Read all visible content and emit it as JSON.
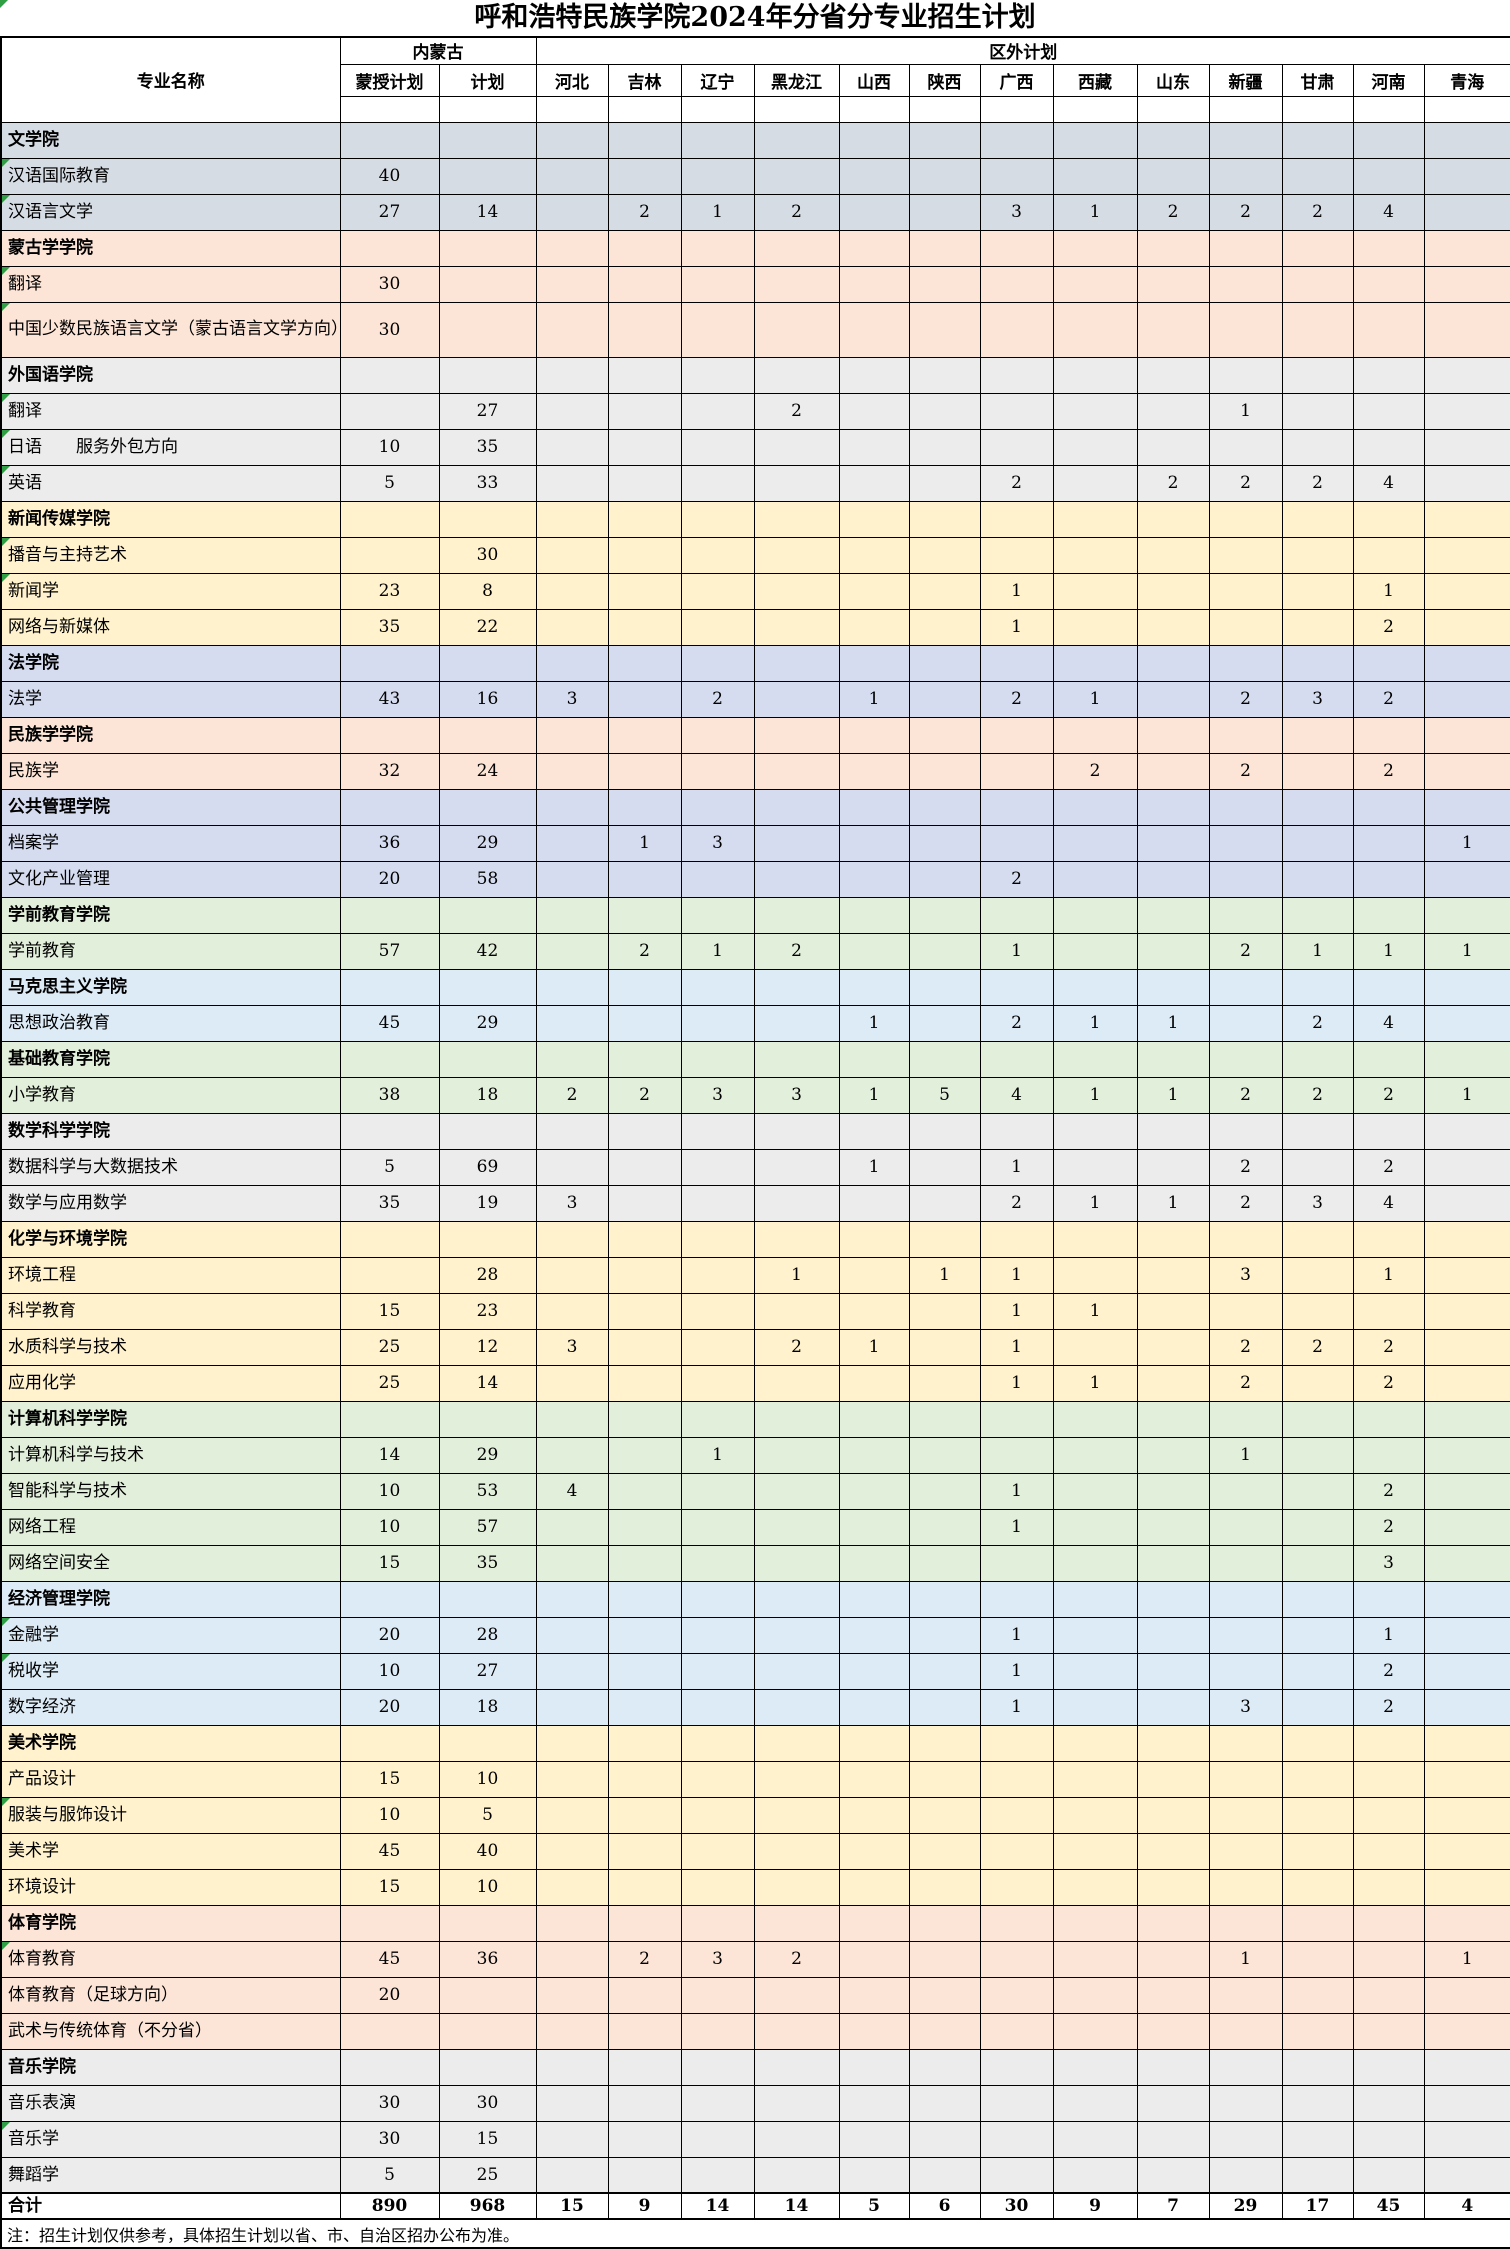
{
  "title": "呼和浩特民族学院2024年分省分专业招生计划",
  "note": "注：招生计划仅供参考，具体招生计划以省、市、自治区招办公布为准。",
  "columns": {
    "major": "专业名称",
    "inner_mongolia": "内蒙古",
    "outside": "区外计划",
    "mengshou": "蒙授计划",
    "jihua": "计划",
    "provinces": [
      "河北",
      "吉林",
      "辽宁",
      "黑龙江",
      "山西",
      "陕西",
      "广西",
      "西藏",
      "山东",
      "新疆",
      "甘肃",
      "河南",
      "青海"
    ]
  },
  "colors": {
    "marker_green": "#2f9e44",
    "bluegrey": "#D6DCE4",
    "peach": "#FCE4D6",
    "grey": "#ECECEC",
    "yellow": "#FFF2CC",
    "lavender": "#D5DCF0",
    "green": "#E2EFDA",
    "lightblue": "#DDEBF7",
    "white": "#FFFFFF"
  },
  "totals": {
    "mengshou": "890",
    "jihua": "968"
  },
  "rows": [
    {
      "t": "college",
      "n": "文学院",
      "c": "bluegrey"
    },
    {
      "t": "major",
      "n": "汉语国际教育",
      "c": "bluegrey",
      "m": "40",
      "p": "",
      "tri": true
    },
    {
      "t": "major",
      "n": "汉语言文学",
      "c": "bluegrey",
      "m": "27",
      "p": "14",
      "v": [
        "",
        "2",
        "1",
        "2",
        "",
        "",
        "3",
        "1",
        "2",
        "2",
        "2",
        "4",
        ""
      ],
      "tri": true
    },
    {
      "t": "college",
      "n": "蒙古学学院",
      "c": "peach"
    },
    {
      "t": "major",
      "n": "翻译",
      "c": "peach",
      "m": "30",
      "p": "",
      "tri": true
    },
    {
      "t": "major",
      "n": "中国少数民族语言文学（蒙古语言文学方向）",
      "c": "peach",
      "m": "30",
      "p": "",
      "tall": true,
      "tri": true
    },
    {
      "t": "college",
      "n": "外国语学院",
      "c": "grey"
    },
    {
      "t": "major",
      "n": "翻译",
      "c": "grey",
      "m": "",
      "p": "27",
      "v": [
        "",
        "",
        "",
        "2",
        "",
        "",
        "",
        "",
        "",
        "1",
        "",
        "",
        ""
      ],
      "tri": true
    },
    {
      "t": "major",
      "n": "日语　　服务外包方向",
      "c": "grey",
      "m": "10",
      "p": "35",
      "tri": true
    },
    {
      "t": "major",
      "n": "英语",
      "c": "grey",
      "m": "5",
      "p": "33",
      "v": [
        "",
        "",
        "",
        "",
        "",
        "",
        "2",
        "",
        "2",
        "2",
        "2",
        "4",
        ""
      ],
      "tri": true
    },
    {
      "t": "college",
      "n": "新闻传媒学院",
      "c": "yellow"
    },
    {
      "t": "major",
      "n": "播音与主持艺术",
      "c": "yellow",
      "m": "",
      "p": "30",
      "tri": true
    },
    {
      "t": "major",
      "n": "新闻学",
      "c": "yellow",
      "m": "23",
      "p": "8",
      "v": [
        "",
        "",
        "",
        "",
        "",
        "",
        "1",
        "",
        "",
        "",
        "",
        "1",
        ""
      ],
      "tri": true
    },
    {
      "t": "major",
      "n": "网络与新媒体",
      "c": "yellow",
      "m": "35",
      "p": "22",
      "v": [
        "",
        "",
        "",
        "",
        "",
        "",
        "1",
        "",
        "",
        "",
        "",
        "2",
        ""
      ]
    },
    {
      "t": "college",
      "n": "法学院",
      "c": "lavender"
    },
    {
      "t": "major",
      "n": "法学",
      "c": "lavender",
      "m": "43",
      "p": "16",
      "v": [
        "3",
        "",
        "2",
        "",
        "1",
        "",
        "2",
        "1",
        "",
        "2",
        "3",
        "2",
        ""
      ]
    },
    {
      "t": "college",
      "n": "民族学学院",
      "c": "peach"
    },
    {
      "t": "major",
      "n": "民族学",
      "c": "peach",
      "m": "32",
      "p": "24",
      "v": [
        "",
        "",
        "",
        "",
        "",
        "",
        "",
        "2",
        "",
        "2",
        "",
        "2",
        ""
      ]
    },
    {
      "t": "college",
      "n": "公共管理学院",
      "c": "lavender"
    },
    {
      "t": "major",
      "n": "档案学",
      "c": "lavender",
      "m": "36",
      "p": "29",
      "v": [
        "",
        "1",
        "3",
        "",
        "",
        "",
        "",
        "",
        "",
        "",
        "",
        "",
        "1"
      ]
    },
    {
      "t": "major",
      "n": "文化产业管理",
      "c": "lavender",
      "m": "20",
      "p": "58",
      "v": [
        "",
        "",
        "",
        "",
        "",
        "",
        "2",
        "",
        "",
        "",
        "",
        "",
        ""
      ]
    },
    {
      "t": "college",
      "n": "学前教育学院",
      "c": "green"
    },
    {
      "t": "major",
      "n": "学前教育",
      "c": "green",
      "m": "57",
      "p": "42",
      "v": [
        "",
        "2",
        "1",
        "2",
        "",
        "",
        "1",
        "",
        "",
        "2",
        "1",
        "1",
        "1"
      ]
    },
    {
      "t": "college",
      "n": "马克思主义学院",
      "c": "lightblue"
    },
    {
      "t": "major",
      "n": "思想政治教育",
      "c": "lightblue",
      "m": "45",
      "p": "29",
      "v": [
        "",
        "",
        "",
        "",
        "1",
        "",
        "2",
        "1",
        "1",
        "",
        "2",
        "4",
        ""
      ]
    },
    {
      "t": "college",
      "n": "基础教育学院",
      "c": "green"
    },
    {
      "t": "major",
      "n": "小学教育",
      "c": "green",
      "m": "38",
      "p": "18",
      "v": [
        "2",
        "2",
        "3",
        "3",
        "1",
        "5",
        "4",
        "1",
        "1",
        "2",
        "2",
        "2",
        "1"
      ]
    },
    {
      "t": "college",
      "n": "数学科学学院",
      "c": "grey"
    },
    {
      "t": "major",
      "n": "数据科学与大数据技术",
      "c": "grey",
      "m": "5",
      "p": "69",
      "v": [
        "",
        "",
        "",
        "",
        "1",
        "",
        "1",
        "",
        "",
        "2",
        "",
        "2",
        ""
      ]
    },
    {
      "t": "major",
      "n": "数学与应用数学",
      "c": "grey",
      "m": "35",
      "p": "19",
      "v": [
        "3",
        "",
        "",
        "",
        "",
        "",
        "2",
        "1",
        "1",
        "2",
        "3",
        "4",
        ""
      ]
    },
    {
      "t": "college",
      "n": "化学与环境学院",
      "c": "yellow"
    },
    {
      "t": "major",
      "n": "环境工程",
      "c": "yellow",
      "m": "",
      "p": "28",
      "v": [
        "",
        "",
        "",
        "1",
        "",
        "1",
        "1",
        "",
        "",
        "3",
        "",
        "1",
        ""
      ]
    },
    {
      "t": "major",
      "n": "科学教育",
      "c": "yellow",
      "m": "15",
      "p": "23",
      "v": [
        "",
        "",
        "",
        "",
        "",
        "",
        "1",
        "1",
        "",
        "",
        "",
        "",
        ""
      ]
    },
    {
      "t": "major",
      "n": "水质科学与技术",
      "c": "yellow",
      "m": "25",
      "p": "12",
      "v": [
        "3",
        "",
        "",
        "2",
        "1",
        "",
        "1",
        "",
        "",
        "2",
        "2",
        "2",
        ""
      ]
    },
    {
      "t": "major",
      "n": "应用化学",
      "c": "yellow",
      "m": "25",
      "p": "14",
      "v": [
        "",
        "",
        "",
        "",
        "",
        "",
        "1",
        "1",
        "",
        "2",
        "",
        "2",
        ""
      ]
    },
    {
      "t": "college",
      "n": "计算机科学学院",
      "c": "green"
    },
    {
      "t": "major",
      "n": "计算机科学与技术",
      "c": "green",
      "m": "14",
      "p": "29",
      "v": [
        "",
        "",
        "1",
        "",
        "",
        "",
        "",
        "",
        "",
        "1",
        "",
        "",
        ""
      ]
    },
    {
      "t": "major",
      "n": "智能科学与技术",
      "c": "green",
      "m": "10",
      "p": "53",
      "v": [
        "4",
        "",
        "",
        "",
        "",
        "",
        "1",
        "",
        "",
        "",
        "",
        "2",
        ""
      ]
    },
    {
      "t": "major",
      "n": "网络工程",
      "c": "green",
      "m": "10",
      "p": "57",
      "v": [
        "",
        "",
        "",
        "",
        "",
        "",
        "1",
        "",
        "",
        "",
        "",
        "2",
        ""
      ]
    },
    {
      "t": "major",
      "n": "网络空间安全",
      "c": "green",
      "m": "15",
      "p": "35",
      "v": [
        "",
        "",
        "",
        "",
        "",
        "",
        "",
        "",
        "",
        "",
        "",
        "3",
        ""
      ]
    },
    {
      "t": "college",
      "n": "经济管理学院",
      "c": "lightblue"
    },
    {
      "t": "major",
      "n": "金融学",
      "c": "lightblue",
      "m": "20",
      "p": "28",
      "v": [
        "",
        "",
        "",
        "",
        "",
        "",
        "1",
        "",
        "",
        "",
        "",
        "1",
        ""
      ],
      "tri": true
    },
    {
      "t": "major",
      "n": "税收学",
      "c": "lightblue",
      "m": "10",
      "p": "27",
      "v": [
        "",
        "",
        "",
        "",
        "",
        "",
        "1",
        "",
        "",
        "",
        "",
        "2",
        ""
      ],
      "tri": true
    },
    {
      "t": "major",
      "n": "数字经济",
      "c": "lightblue",
      "m": "20",
      "p": "18",
      "v": [
        "",
        "",
        "",
        "",
        "",
        "",
        "1",
        "",
        "",
        "3",
        "",
        "2",
        ""
      ]
    },
    {
      "t": "college",
      "n": "美术学院",
      "c": "yellow"
    },
    {
      "t": "major",
      "n": "产品设计",
      "c": "yellow",
      "m": "15",
      "p": "10"
    },
    {
      "t": "major",
      "n": "服装与服饰设计",
      "c": "yellow",
      "m": "10",
      "p": "5",
      "tri": true
    },
    {
      "t": "major",
      "n": "美术学",
      "c": "yellow",
      "m": "45",
      "p": "40"
    },
    {
      "t": "major",
      "n": "环境设计",
      "c": "yellow",
      "m": "15",
      "p": "10"
    },
    {
      "t": "college",
      "n": "体育学院",
      "c": "peach"
    },
    {
      "t": "major",
      "n": "体育教育",
      "c": "peach",
      "m": "45",
      "p": "36",
      "v": [
        "",
        "2",
        "3",
        "2",
        "",
        "",
        "",
        "",
        "",
        "1",
        "",
        "",
        "1"
      ],
      "tri": true
    },
    {
      "t": "major",
      "n": "体育教育（足球方向）",
      "c": "peach",
      "m": "20",
      "p": ""
    },
    {
      "t": "major",
      "n": "武术与传统体育（不分省）",
      "c": "peach",
      "m": "",
      "p": ""
    },
    {
      "t": "college",
      "n": "音乐学院",
      "c": "grey"
    },
    {
      "t": "major",
      "n": "音乐表演",
      "c": "grey",
      "m": "30",
      "p": "30"
    },
    {
      "t": "major",
      "n": "音乐学",
      "c": "grey",
      "m": "30",
      "p": "15",
      "tri": true
    },
    {
      "t": "major",
      "n": "舞蹈学",
      "c": "grey",
      "m": "5",
      "p": "25"
    },
    {
      "t": "total",
      "n": "合计",
      "c": "white",
      "m": "890",
      "p": "968",
      "v": [
        "15",
        "9",
        "14",
        "14",
        "5",
        "6",
        "30",
        "9",
        "7",
        "29",
        "17",
        "45",
        "4"
      ]
    }
  ]
}
